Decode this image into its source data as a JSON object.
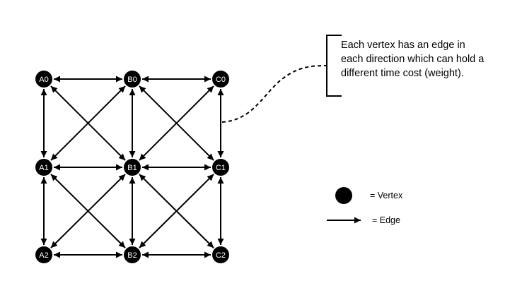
{
  "vertices": [
    {
      "id": "A0",
      "label": "A0"
    },
    {
      "id": "B0",
      "label": "B0"
    },
    {
      "id": "C0",
      "label": "C0"
    },
    {
      "id": "A1",
      "label": "A1"
    },
    {
      "id": "B1",
      "label": "B1"
    },
    {
      "id": "C1",
      "label": "C1"
    },
    {
      "id": "A2",
      "label": "A2"
    },
    {
      "id": "B2",
      "label": "B2"
    },
    {
      "id": "C2",
      "label": "C2"
    }
  ],
  "edges": [
    [
      "A0",
      "B0"
    ],
    [
      "B0",
      "C0"
    ],
    [
      "A1",
      "B1"
    ],
    [
      "B1",
      "C1"
    ],
    [
      "A2",
      "B2"
    ],
    [
      "B2",
      "C2"
    ],
    [
      "A0",
      "A1"
    ],
    [
      "A1",
      "A2"
    ],
    [
      "B0",
      "B1"
    ],
    [
      "B1",
      "B2"
    ],
    [
      "C0",
      "C1"
    ],
    [
      "C1",
      "C2"
    ],
    [
      "A0",
      "B1"
    ],
    [
      "B0",
      "A1"
    ],
    [
      "B0",
      "C1"
    ],
    [
      "C0",
      "B1"
    ],
    [
      "A1",
      "B2"
    ],
    [
      "B1",
      "A2"
    ],
    [
      "B1",
      "C2"
    ],
    [
      "C1",
      "B2"
    ]
  ],
  "callout": {
    "text": "Each vertex has an edge in each direction which can hold a different time cost (weight)."
  },
  "legend": {
    "vertex_label": "= Vertex",
    "edge_label": "= Edge"
  },
  "colors": {
    "vertex_fill": "#000000",
    "vertex_text": "#ffffff",
    "line": "#000000"
  }
}
